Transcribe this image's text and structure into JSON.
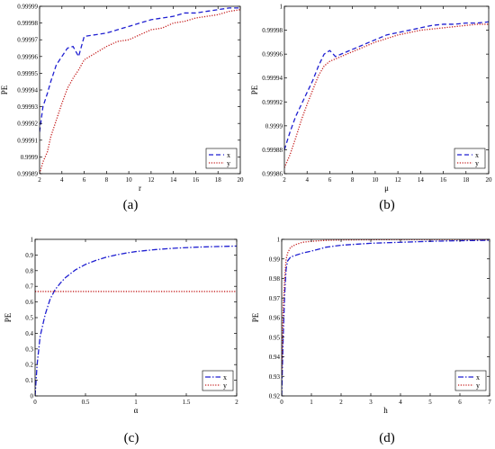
{
  "colors": {
    "x": "#1f1fd1",
    "y": "#c41a1a",
    "axis": "#000000",
    "background": "#ffffff"
  },
  "chart_data": [
    {
      "type": "line",
      "caption": "(a)",
      "xlabel": "r",
      "ylabel": "PE",
      "xlim": [
        2,
        20
      ],
      "ylim": [
        0.99989,
        0.99999
      ],
      "xticks": [
        "2",
        "4",
        "6",
        "8",
        "10",
        "12",
        "14",
        "16",
        "18",
        "20"
      ],
      "yticks": [
        "0.99989",
        "0.9999",
        "0.99991",
        "0.99992",
        "0.99993",
        "0.99994",
        "0.99995",
        "0.99996",
        "0.99997",
        "0.99998",
        "0.99999"
      ],
      "grid": false,
      "legend_position": "bottom-right",
      "series": [
        {
          "name": "x",
          "style": "dashed",
          "x": [
            2,
            2.3,
            2.7,
            3,
            3.5,
            4,
            4.5,
            5,
            5.5,
            6,
            7,
            8,
            9,
            10,
            11,
            12,
            13,
            14,
            15,
            16,
            17,
            18,
            19,
            20
          ],
          "y": [
            0.999915,
            0.99993,
            0.999938,
            0.999945,
            0.999955,
            0.99996,
            0.999965,
            0.999966,
            0.99996,
            0.999972,
            0.999973,
            0.999974,
            0.999976,
            0.999978,
            0.99998,
            0.999982,
            0.999983,
            0.999984,
            0.999986,
            0.999986,
            0.999987,
            0.999988,
            0.999989,
            0.999989
          ]
        },
        {
          "name": "y",
          "style": "dotted",
          "x": [
            2,
            2.3,
            2.7,
            3,
            3.5,
            4,
            4.5,
            5,
            5.5,
            6,
            7,
            8,
            9,
            10,
            11,
            12,
            13,
            14,
            15,
            16,
            17,
            18,
            19,
            20
          ],
          "y": [
            0.99989,
            0.999897,
            0.999903,
            0.999912,
            0.999922,
            0.999932,
            0.999941,
            0.999947,
            0.999952,
            0.999958,
            0.999962,
            0.999966,
            0.999969,
            0.99997,
            0.999973,
            0.999976,
            0.999977,
            0.99998,
            0.999981,
            0.999983,
            0.999984,
            0.999985,
            0.999987,
            0.999988
          ]
        }
      ]
    },
    {
      "type": "line",
      "caption": "(b)",
      "xlabel": "μ",
      "ylabel": "PE",
      "xlim": [
        2,
        20
      ],
      "ylim": [
        0.99986,
        1
      ],
      "xticks": [
        "2",
        "4",
        "6",
        "8",
        "10",
        "12",
        "14",
        "16",
        "18",
        "20"
      ],
      "yticks": [
        "0.99986",
        "0.99988",
        "0.9999",
        "0.99992",
        "0.99994",
        "0.99996",
        "0.99998",
        "1"
      ],
      "grid": false,
      "legend_position": "bottom-right",
      "series": [
        {
          "name": "x",
          "style": "dashed",
          "x": [
            2,
            2.5,
            3,
            3.5,
            4,
            4.5,
            5,
            5.5,
            6,
            6.5,
            7,
            8,
            9,
            10,
            11,
            12,
            13,
            14,
            15,
            16,
            17,
            18,
            19,
            20
          ],
          "y": [
            0.99988,
            0.999895,
            0.999908,
            0.999918,
            0.999928,
            0.999938,
            0.99995,
            0.99996,
            0.999963,
            0.999958,
            0.99996,
            0.999964,
            0.999968,
            0.999972,
            0.999976,
            0.999978,
            0.99998,
            0.999982,
            0.999984,
            0.999985,
            0.999985,
            0.999986,
            0.999986,
            0.999987
          ]
        },
        {
          "name": "y",
          "style": "dotted",
          "x": [
            2,
            2.5,
            3,
            3.5,
            4,
            4.5,
            5,
            5.5,
            6,
            6.5,
            7,
            8,
            9,
            10,
            11,
            12,
            13,
            14,
            15,
            16,
            17,
            18,
            19,
            20
          ],
          "y": [
            0.999865,
            0.999876,
            0.99989,
            0.999905,
            0.999918,
            0.99993,
            0.999942,
            0.99995,
            0.999954,
            0.999956,
            0.999958,
            0.999962,
            0.999966,
            0.99997,
            0.999973,
            0.999976,
            0.999978,
            0.99998,
            0.999981,
            0.999982,
            0.999983,
            0.999984,
            0.999985,
            0.999985
          ]
        }
      ]
    },
    {
      "type": "line",
      "caption": "(c)",
      "xlabel": "α",
      "ylabel": "PE",
      "xlim": [
        0,
        2
      ],
      "ylim": [
        0,
        1
      ],
      "xticks": [
        "0",
        "0.5",
        "1",
        "1.5",
        "2"
      ],
      "yticks": [
        "0",
        "0.1",
        "0.2",
        "0.3",
        "0.4",
        "0.5",
        "0.6",
        "0.7",
        "0.8",
        "0.9",
        "1"
      ],
      "grid": false,
      "legend_position": "bottom-right",
      "series": [
        {
          "name": "x",
          "style": "dashdot",
          "x": [
            0,
            0.02,
            0.05,
            0.1,
            0.15,
            0.2,
            0.25,
            0.3,
            0.4,
            0.5,
            0.6,
            0.7,
            0.8,
            0.9,
            1.0,
            1.2,
            1.4,
            1.6,
            1.8,
            2.0
          ],
          "y": [
            0,
            0.2,
            0.38,
            0.52,
            0.62,
            0.68,
            0.72,
            0.755,
            0.805,
            0.84,
            0.865,
            0.885,
            0.9,
            0.912,
            0.922,
            0.935,
            0.944,
            0.95,
            0.954,
            0.957
          ]
        },
        {
          "name": "y",
          "style": "dotted",
          "x": [
            0,
            2
          ],
          "y": [
            0.667,
            0.667
          ]
        }
      ]
    },
    {
      "type": "line",
      "caption": "(d)",
      "xlabel": "h",
      "ylabel": "PE",
      "xlim": [
        0,
        7
      ],
      "ylim": [
        0.92,
        1
      ],
      "xticks": [
        "0",
        "1",
        "2",
        "3",
        "4",
        "5",
        "6",
        "7"
      ],
      "yticks": [
        "0.92",
        "0.93",
        "0.94",
        "0.95",
        "0.96",
        "0.97",
        "0.98",
        "0.99",
        "1"
      ],
      "grid": false,
      "legend_position": "bottom-right",
      "series": [
        {
          "name": "x",
          "style": "dashdot",
          "x": [
            0,
            0.05,
            0.1,
            0.15,
            0.2,
            0.3,
            0.5,
            0.7,
            1,
            1.5,
            2,
            3,
            4,
            5,
            6,
            7
          ],
          "y": [
            0.92,
            0.95,
            0.972,
            0.985,
            0.989,
            0.991,
            0.992,
            0.993,
            0.994,
            0.996,
            0.997,
            0.998,
            0.9985,
            0.999,
            0.9993,
            0.9995
          ]
        },
        {
          "name": "y",
          "style": "dotted",
          "x": [
            0,
            0.05,
            0.1,
            0.15,
            0.2,
            0.3,
            0.5,
            0.7,
            1,
            1.5,
            2,
            3,
            4,
            5,
            6,
            7
          ],
          "y": [
            0.93,
            0.965,
            0.98,
            0.99,
            0.993,
            0.996,
            0.9975,
            0.9985,
            0.999,
            0.9995,
            0.9997,
            0.9998,
            0.9999,
            0.9999,
            0.9999,
            0.9999
          ]
        }
      ]
    }
  ]
}
